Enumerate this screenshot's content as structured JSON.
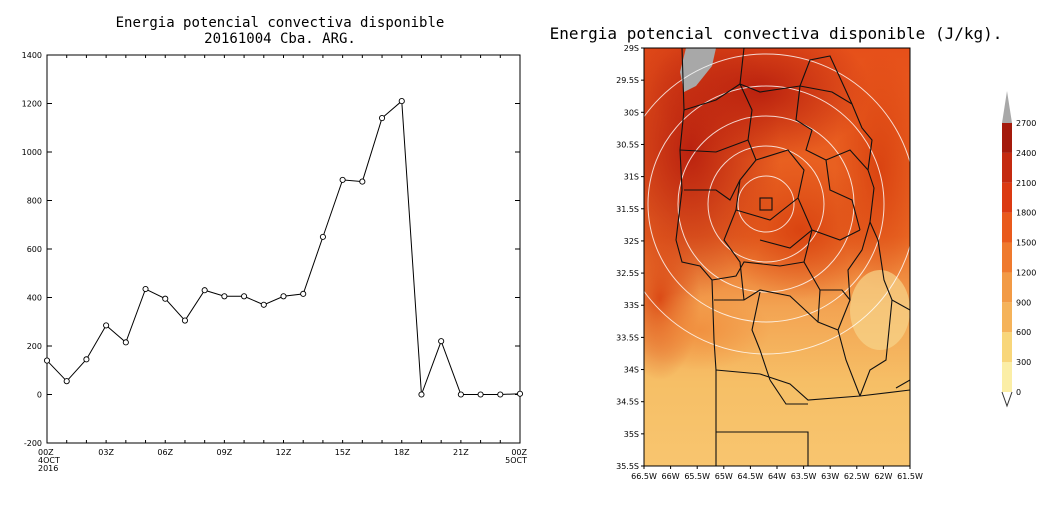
{
  "left_chart": {
    "title_line1": "Energia potencial convectiva disponible",
    "title_line2": "20161004 Cba. ARG."
  },
  "right_map": {
    "title": "Energia potencial convectiva disponible (J/kg).",
    "colorbar_labels": [
      "0",
      "300",
      "600",
      "900",
      "1200",
      "1500",
      "1800",
      "2100",
      "2400",
      "2700"
    ],
    "colorbar_colors": [
      "#fbeea6",
      "#f8d67a",
      "#f5b35a",
      "#f29a45",
      "#ef7a2e",
      "#e95a1c",
      "#db3a12",
      "#c42a10",
      "#a41a0c"
    ],
    "overflow_color": "#a8a8a8"
  },
  "chart_data": [
    {
      "type": "line",
      "title": "Energia potencial convectiva disponible",
      "subtitle": "20161004 Cba. ARG.",
      "xlabel": "",
      "ylabel": "",
      "x": [
        "00Z",
        "01Z",
        "02Z",
        "03Z",
        "04Z",
        "05Z",
        "06Z",
        "07Z",
        "08Z",
        "09Z",
        "10Z",
        "11Z",
        "12Z",
        "13Z",
        "14Z",
        "15Z",
        "16Z",
        "17Z",
        "18Z",
        "19Z",
        "20Z",
        "21Z",
        "22Z",
        "23Z",
        "00Z"
      ],
      "values": [
        140,
        55,
        145,
        285,
        215,
        435,
        395,
        305,
        430,
        405,
        405,
        370,
        405,
        415,
        650,
        885,
        878,
        1140,
        1210,
        0,
        220,
        0,
        0,
        0,
        3
      ],
      "ylim": [
        -200,
        1400
      ],
      "yticks": [
        "-200",
        "0",
        "200",
        "400",
        "600",
        "800",
        "1000",
        "1200",
        "1400"
      ],
      "xticks": [
        "00Z",
        "03Z",
        "06Z",
        "09Z",
        "12Z",
        "15Z",
        "18Z",
        "21Z",
        "00Z"
      ],
      "x_first_date": [
        "4OCT",
        "2016"
      ],
      "x_last_date": "5OCT",
      "grid": false
    },
    {
      "type": "heatmap",
      "title": "Energia potencial convectiva disponible (J/kg).",
      "x_ticks": [
        "66.5W",
        "66W",
        "65.5W",
        "65W",
        "64.5W",
        "64W",
        "63.5W",
        "63W",
        "62.5W",
        "62W",
        "61.5W"
      ],
      "y_ticks": [
        "29S",
        "29.5S",
        "30S",
        "30.5S",
        "31S",
        "31.5S",
        "32S",
        "32.5S",
        "33S",
        "33.5S",
        "34S",
        "34.5S",
        "35S",
        "35.5S"
      ],
      "colorbar_levels": [
        0,
        300,
        600,
        900,
        1200,
        1500,
        1800,
        2100,
        2400,
        2700
      ]
    }
  ]
}
